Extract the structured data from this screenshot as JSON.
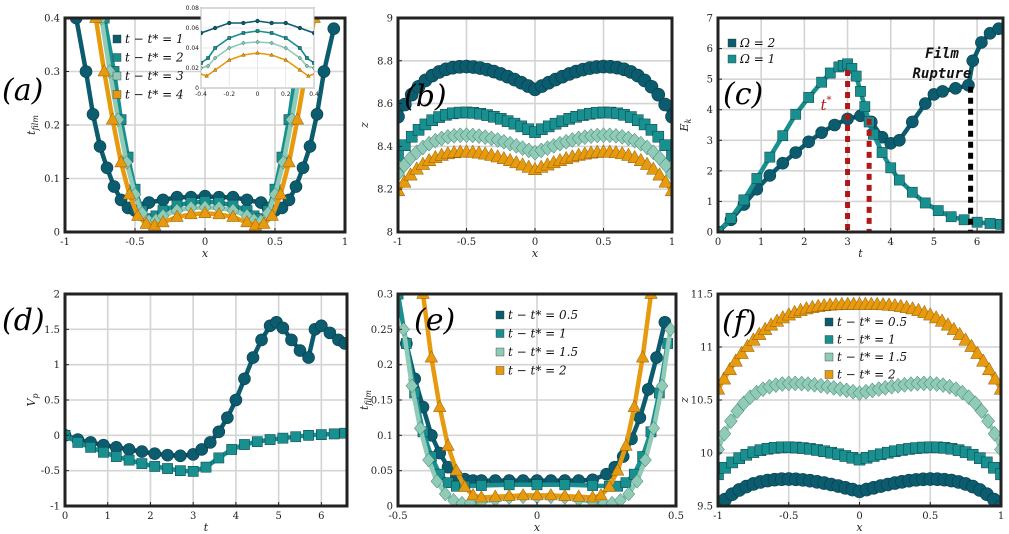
{
  "colors": {
    "dark": "#0b5c6e",
    "teal": "#17908f",
    "light": "#8fcbb7",
    "orange": "#e89a0f",
    "red": "#b01818",
    "black": "#000000",
    "grid": "#d4d4d4"
  },
  "chart_data": [
    {
      "id": "a",
      "panel_label": "(a)",
      "type": "line",
      "xlabel": "x",
      "ylabel": "t_film",
      "xlim": [
        -1,
        1
      ],
      "ylim": [
        0,
        0.4
      ],
      "xticks": [
        -1,
        -0.5,
        0,
        0.5,
        1
      ],
      "xtick_labels": [
        "-1",
        "-0.5",
        "0",
        "0.5",
        "1"
      ],
      "yticks": [
        0,
        0.1,
        0.2,
        0.3,
        0.4
      ],
      "ytick_labels": [
        "0",
        "0.1",
        "0.2",
        "0.3",
        "0.4"
      ],
      "legend": [
        "t − t* = 1",
        "t − t* = 2",
        "t − t* = 3",
        "t − t* = 4"
      ],
      "series": [
        {
          "name": "t − t* = 1",
          "color": "dark",
          "marker": "circle",
          "x": [
            -0.92,
            -0.85,
            -0.8,
            -0.75,
            -0.7,
            -0.65,
            -0.6,
            -0.55,
            -0.5,
            -0.45,
            -0.4,
            -0.3,
            -0.2,
            -0.1,
            0,
            0.1,
            0.2,
            0.3,
            0.4,
            0.45,
            0.5,
            0.55,
            0.6,
            0.65,
            0.7,
            0.75,
            0.8,
            0.85,
            0.92
          ],
          "y": [
            0.4,
            0.3,
            0.22,
            0.16,
            0.12,
            0.085,
            0.06,
            0.045,
            0.04,
            0.045,
            0.055,
            0.06,
            0.065,
            0.065,
            0.067,
            0.065,
            0.065,
            0.06,
            0.055,
            0.045,
            0.04,
            0.045,
            0.06,
            0.085,
            0.12,
            0.16,
            0.22,
            0.3,
            0.38
          ]
        },
        {
          "name": "t − t* = 2",
          "color": "teal",
          "marker": "square",
          "x": [
            -0.72,
            -0.65,
            -0.6,
            -0.55,
            -0.5,
            -0.45,
            -0.4,
            -0.35,
            -0.3,
            -0.2,
            -0.1,
            0,
            0.1,
            0.2,
            0.3,
            0.35,
            0.4,
            0.45,
            0.5,
            0.55,
            0.6,
            0.65,
            0.72
          ],
          "y": [
            0.4,
            0.3,
            0.21,
            0.14,
            0.08,
            0.04,
            0.025,
            0.03,
            0.04,
            0.05,
            0.055,
            0.057,
            0.055,
            0.05,
            0.04,
            0.03,
            0.025,
            0.04,
            0.08,
            0.14,
            0.21,
            0.3,
            0.4
          ]
        },
        {
          "name": "t − t* = 3",
          "color": "light",
          "marker": "diamond",
          "x": [
            -0.74,
            -0.68,
            -0.62,
            -0.56,
            -0.5,
            -0.45,
            -0.4,
            -0.35,
            -0.3,
            -0.2,
            -0.1,
            0,
            0.1,
            0.2,
            0.3,
            0.35,
            0.4,
            0.45,
            0.5,
            0.56,
            0.62,
            0.68,
            0.74
          ],
          "y": [
            0.4,
            0.3,
            0.21,
            0.13,
            0.07,
            0.035,
            0.02,
            0.022,
            0.03,
            0.04,
            0.045,
            0.046,
            0.045,
            0.04,
            0.03,
            0.022,
            0.02,
            0.035,
            0.07,
            0.13,
            0.21,
            0.3,
            0.4
          ]
        },
        {
          "name": "t − t* = 4",
          "color": "orange",
          "marker": "triangle",
          "x": [
            -0.78,
            -0.72,
            -0.66,
            -0.6,
            -0.54,
            -0.48,
            -0.42,
            -0.36,
            -0.3,
            -0.2,
            -0.1,
            0,
            0.1,
            0.2,
            0.3,
            0.36,
            0.42,
            0.48,
            0.54,
            0.6,
            0.66,
            0.72,
            0.78
          ],
          "y": [
            0.4,
            0.3,
            0.21,
            0.13,
            0.07,
            0.03,
            0.015,
            0.012,
            0.018,
            0.028,
            0.033,
            0.035,
            0.033,
            0.028,
            0.018,
            0.012,
            0.015,
            0.03,
            0.07,
            0.13,
            0.21,
            0.3,
            0.4
          ]
        }
      ],
      "inset": {
        "xlim": [
          -0.4,
          0.4
        ],
        "ylim": [
          0,
          0.08
        ],
        "xticks": [
          -0.4,
          -0.2,
          0,
          0.2,
          0.4
        ],
        "xtick_labels": [
          "-0.4",
          "-0.2",
          "0",
          "0.2",
          "0.4"
        ],
        "yticks": [
          0,
          0.02,
          0.04,
          0.06,
          0.08
        ],
        "ytick_labels": [
          "0",
          "0.02",
          "0.04",
          "0.06",
          "0.08"
        ]
      }
    },
    {
      "id": "b",
      "panel_label": "(b)",
      "type": "line",
      "xlabel": "x",
      "ylabel": "z",
      "xlim": [
        -1,
        1
      ],
      "ylim": [
        8,
        9
      ],
      "xticks": [
        -1,
        -0.5,
        0,
        0.5,
        1
      ],
      "xtick_labels": [
        "-1",
        "-0.5",
        "0",
        "0.5",
        "1"
      ],
      "yticks": [
        8,
        8.2,
        8.4,
        8.6,
        8.8,
        9
      ],
      "ytick_labels": [
        "8",
        "8.2",
        "8.4",
        "8.6",
        "8.8",
        "9"
      ],
      "series": [
        {
          "color": "dark",
          "marker": "circle",
          "base": 8.705,
          "amp": 0.11,
          "npts": 41
        },
        {
          "color": "teal",
          "marker": "square",
          "base": 8.5,
          "amp": 0.095,
          "npts": 41
        },
        {
          "color": "light",
          "marker": "diamond",
          "base": 8.4,
          "amp": 0.085,
          "npts": 45
        },
        {
          "color": "orange",
          "marker": "triangle",
          "base": 8.32,
          "amp": 0.085,
          "npts": 45
        }
      ]
    },
    {
      "id": "c",
      "panel_label": "(c)",
      "type": "line",
      "xlabel": "t",
      "ylabel": "E_k",
      "xlim": [
        0,
        6.6
      ],
      "ylim": [
        0,
        7
      ],
      "xticks": [
        0,
        1,
        2,
        3,
        4,
        5,
        6
      ],
      "xtick_labels": [
        "0",
        "1",
        "2",
        "3",
        "4",
        "5",
        "6"
      ],
      "yticks": [
        0,
        1,
        2,
        3,
        4,
        5,
        6,
        7
      ],
      "ytick_labels": [
        "0",
        "1",
        "2",
        "3",
        "4",
        "5",
        "6",
        "7"
      ],
      "legend": [
        "Ω = 2",
        "Ω = 1"
      ],
      "annotation": [
        "Film",
        "Rupture"
      ],
      "tstar_label": "t*",
      "vlines": [
        {
          "x": 3.0,
          "y": 5.3,
          "color": "red"
        },
        {
          "x": 3.5,
          "y": 3.7,
          "color": "red"
        },
        {
          "x": 5.85,
          "y": 4.75,
          "color": "black"
        }
      ],
      "series": [
        {
          "name": "Ω = 2",
          "color": "dark",
          "marker": "circle",
          "x": [
            0,
            0.3,
            0.6,
            0.9,
            1.2,
            1.5,
            1.8,
            2.1,
            2.4,
            2.7,
            3.0,
            3.3,
            3.55,
            3.8,
            4.0,
            4.2,
            4.5,
            4.8,
            5.0,
            5.2,
            5.5,
            5.8,
            5.9,
            6.1,
            6.3,
            6.5
          ],
          "y": [
            0,
            0.4,
            0.9,
            1.4,
            1.85,
            2.25,
            2.6,
            2.95,
            3.25,
            3.5,
            3.7,
            3.8,
            3.6,
            3.1,
            2.9,
            3.0,
            3.6,
            4.2,
            4.5,
            4.6,
            4.7,
            4.8,
            5.6,
            6.2,
            6.5,
            6.65
          ]
        },
        {
          "name": "Ω = 1",
          "color": "teal",
          "marker": "square",
          "x": [
            0,
            0.3,
            0.6,
            0.9,
            1.2,
            1.5,
            1.8,
            2.1,
            2.4,
            2.6,
            2.8,
            2.9,
            3.0,
            3.1,
            3.2,
            3.3,
            3.4,
            3.5,
            3.6,
            3.8,
            4.0,
            4.2,
            4.5,
            4.8,
            5.1,
            5.4,
            5.7,
            6.0,
            6.3,
            6.55
          ],
          "y": [
            0,
            0.45,
            1.05,
            1.75,
            2.45,
            3.15,
            3.85,
            4.4,
            4.9,
            5.2,
            5.4,
            5.45,
            5.5,
            5.35,
            5.1,
            4.6,
            4.1,
            3.6,
            3.2,
            2.6,
            2.1,
            1.7,
            1.3,
            0.95,
            0.7,
            0.5,
            0.4,
            0.32,
            0.28,
            0.25
          ]
        }
      ]
    },
    {
      "id": "d",
      "panel_label": "(d)",
      "type": "line",
      "xlabel": "t",
      "ylabel": "V_p",
      "xlim": [
        0,
        6.6
      ],
      "ylim": [
        -1,
        2
      ],
      "xticks": [
        0,
        1,
        2,
        3,
        4,
        5,
        6
      ],
      "xtick_labels": [
        "0",
        "1",
        "2",
        "3",
        "4",
        "5",
        "6"
      ],
      "yticks": [
        -1,
        -0.5,
        0,
        0.5,
        1,
        1.5,
        2
      ],
      "ytick_labels": [
        "-1",
        "-0.5",
        "0",
        "0.5",
        "1",
        "1.5",
        "2"
      ],
      "series": [
        {
          "color": "dark",
          "marker": "circle",
          "x": [
            0,
            0.3,
            0.6,
            0.9,
            1.2,
            1.5,
            1.8,
            2.1,
            2.4,
            2.7,
            3.0,
            3.2,
            3.4,
            3.6,
            3.8,
            4.0,
            4.2,
            4.4,
            4.6,
            4.8,
            4.95,
            5.1,
            5.3,
            5.5,
            5.7,
            5.85,
            6.0,
            6.2,
            6.4,
            6.55
          ],
          "y": [
            0,
            -0.06,
            -0.1,
            -0.14,
            -0.17,
            -0.2,
            -0.23,
            -0.26,
            -0.28,
            -0.29,
            -0.27,
            -0.2,
            -0.1,
            0.05,
            0.25,
            0.5,
            0.8,
            1.1,
            1.35,
            1.55,
            1.6,
            1.52,
            1.35,
            1.2,
            1.1,
            1.5,
            1.55,
            1.45,
            1.35,
            1.3
          ]
        },
        {
          "color": "teal",
          "marker": "square",
          "x": [
            0,
            0.3,
            0.6,
            0.9,
            1.2,
            1.5,
            1.8,
            2.1,
            2.4,
            2.7,
            3.0,
            3.3,
            3.6,
            3.9,
            4.2,
            4.5,
            4.8,
            5.1,
            5.4,
            5.7,
            6.0,
            6.3,
            6.55
          ],
          "y": [
            0,
            -0.1,
            -0.17,
            -0.24,
            -0.3,
            -0.35,
            -0.4,
            -0.44,
            -0.47,
            -0.5,
            -0.51,
            -0.45,
            -0.32,
            -0.2,
            -0.13,
            -0.09,
            -0.06,
            -0.04,
            -0.02,
            0,
            0.01,
            0.02,
            0.03
          ]
        }
      ]
    },
    {
      "id": "e",
      "panel_label": "(e)",
      "type": "line",
      "xlabel": "x",
      "ylabel": "t_film",
      "xlim": [
        -0.5,
        0.5
      ],
      "ylim": [
        0,
        0.3
      ],
      "xticks": [
        -0.5,
        0,
        0.5
      ],
      "xtick_labels": [
        "-0.5",
        "0",
        "0.5"
      ],
      "yticks": [
        0,
        0.05,
        0.1,
        0.15,
        0.2,
        0.25,
        0.3
      ],
      "ytick_labels": [
        "0",
        "0.05",
        "0.1",
        "0.15",
        "0.2",
        "0.25",
        "0.3"
      ],
      "legend": [
        "t − t* = 0.5",
        "t − t* = 1",
        "t − t* = 1.5",
        "t − t* = 2"
      ],
      "series": [
        {
          "name": "t − t* = 0.5",
          "color": "dark",
          "marker": "circle",
          "x": [
            -0.47,
            -0.44,
            -0.41,
            -0.38,
            -0.35,
            -0.32,
            -0.29,
            -0.26,
            -0.23,
            -0.2,
            -0.15,
            -0.1,
            -0.05,
            0,
            0.05,
            0.1,
            0.15,
            0.2,
            0.25,
            0.28,
            0.31,
            0.34,
            0.37,
            0.4,
            0.43,
            0.46
          ],
          "y": [
            0.23,
            0.18,
            0.14,
            0.1,
            0.075,
            0.055,
            0.043,
            0.038,
            0.036,
            0.036,
            0.036,
            0.036,
            0.036,
            0.036,
            0.036,
            0.036,
            0.036,
            0.037,
            0.045,
            0.055,
            0.07,
            0.095,
            0.125,
            0.165,
            0.21,
            0.26
          ]
        },
        {
          "name": "t − t* = 1",
          "color": "teal",
          "marker": "square",
          "x": [
            -0.5,
            -0.47,
            -0.44,
            -0.41,
            -0.38,
            -0.35,
            -0.32,
            -0.29,
            -0.26,
            -0.2,
            -0.1,
            0,
            0.1,
            0.2,
            0.26,
            0.29,
            0.32,
            0.35,
            0.38,
            0.41,
            0.44,
            0.47
          ],
          "y": [
            0.3,
            0.23,
            0.16,
            0.105,
            0.07,
            0.045,
            0.033,
            0.028,
            0.028,
            0.029,
            0.03,
            0.03,
            0.03,
            0.029,
            0.028,
            0.028,
            0.033,
            0.045,
            0.07,
            0.105,
            0.16,
            0.23
          ]
        },
        {
          "name": "t − t* = 1.5",
          "color": "light",
          "marker": "diamond",
          "x": [
            -0.48,
            -0.45,
            -0.42,
            -0.39,
            -0.36,
            -0.33,
            -0.3,
            -0.27,
            -0.24,
            -0.2,
            -0.15,
            -0.1,
            -0.05,
            0,
            0.05,
            0.1,
            0.15,
            0.2,
            0.24,
            0.27,
            0.3,
            0.33,
            0.36,
            0.39,
            0.42,
            0.45,
            0.48
          ],
          "y": [
            0.25,
            0.17,
            0.11,
            0.065,
            0.035,
            0.017,
            0.008,
            0.004,
            0.004,
            0.006,
            0.009,
            0.012,
            0.013,
            0.013,
            0.013,
            0.012,
            0.009,
            0.006,
            0.004,
            0.004,
            0.008,
            0.017,
            0.035,
            0.065,
            0.11,
            0.17,
            0.25
          ]
        },
        {
          "name": "t − t* = 2",
          "color": "orange",
          "marker": "triangle",
          "x": [
            -0.41,
            -0.38,
            -0.35,
            -0.32,
            -0.29,
            -0.26,
            -0.23,
            -0.2,
            -0.15,
            -0.1,
            -0.05,
            0,
            0.05,
            0.1,
            0.15,
            0.2,
            0.23,
            0.26,
            0.29,
            0.32,
            0.35,
            0.38,
            0.41
          ],
          "y": [
            0.3,
            0.21,
            0.14,
            0.085,
            0.05,
            0.027,
            0.015,
            0.012,
            0.013,
            0.014,
            0.015,
            0.015,
            0.015,
            0.014,
            0.013,
            0.012,
            0.015,
            0.027,
            0.05,
            0.085,
            0.14,
            0.21,
            0.3
          ]
        }
      ]
    },
    {
      "id": "f",
      "panel_label": "(f)",
      "type": "line",
      "xlabel": "x",
      "ylabel": "z",
      "xlim": [
        -1,
        1
      ],
      "ylim": [
        9.5,
        11.5
      ],
      "xticks": [
        -1,
        -0.5,
        0,
        0.5,
        1
      ],
      "xtick_labels": [
        "-1",
        "-0.5",
        "0",
        "0.5",
        "1"
      ],
      "yticks": [
        9.5,
        10,
        10.5,
        11,
        11.5
      ],
      "ytick_labels": [
        "9.5",
        "10",
        "10.5",
        "11",
        "11.5"
      ],
      "legend": [
        "t − t* = 0.5",
        "t − t* = 1",
        "t − t* = 1.5",
        "t − t* = 2"
      ],
      "series": [
        {
          "name": "t − t* = 0.5",
          "color": "dark",
          "marker": "circle",
          "base": 9.68,
          "amp": 0.12,
          "npts": 41,
          "shape": "wave"
        },
        {
          "name": "t − t* = 1",
          "color": "teal",
          "marker": "square",
          "base": 9.98,
          "amp": 0.12,
          "npts": 41,
          "shape": "wave"
        },
        {
          "name": "t − t* = 1.5",
          "color": "light",
          "marker": "diamond",
          "base": 10.6,
          "amp": 0.1,
          "npts": 45,
          "shape": "wave",
          "drop": 0.35
        },
        {
          "name": "t − t* = 2",
          "color": "orange",
          "marker": "triangle",
          "base": 11.4,
          "amp": 0,
          "npts": 49,
          "shape": "dome",
          "drop": 0.8
        }
      ]
    }
  ]
}
